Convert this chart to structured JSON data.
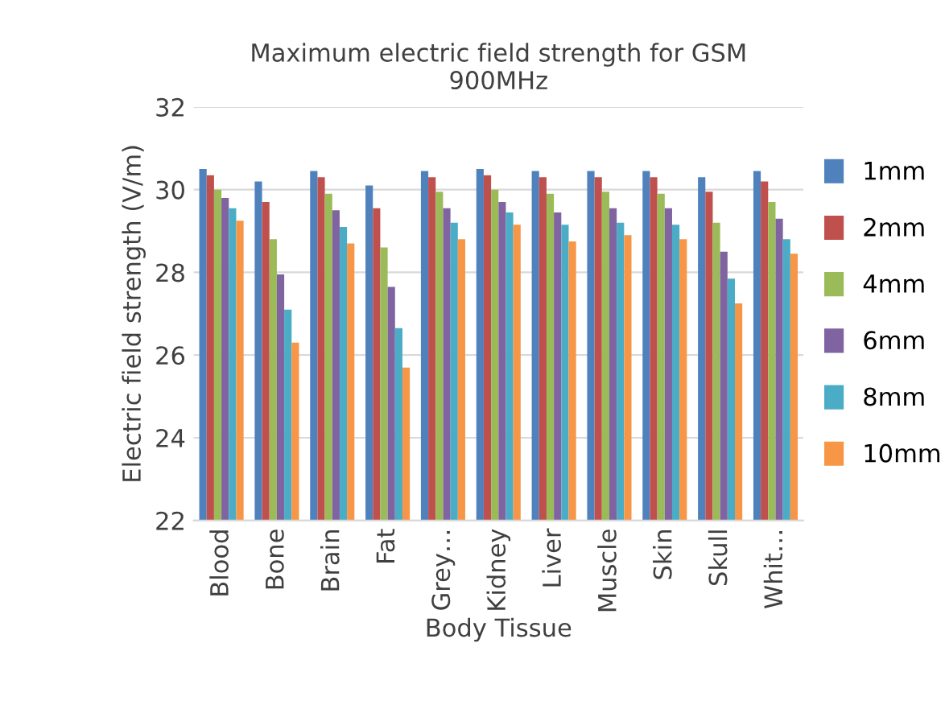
{
  "chart_data": {
    "type": "bar",
    "title": "Maximum electric field strength for GSM\n900MHz",
    "xlabel": "Body Tissue",
    "ylabel": "Electric field strength (V/m)",
    "categories": [
      "Blood",
      "Bone",
      "Brain",
      "Fat",
      "Grey…",
      "Kidney",
      "Liver",
      "Muscle",
      "Skin",
      "Skull",
      "Whit…"
    ],
    "series": [
      {
        "name": "1mm",
        "color": "#4f81bd",
        "values": [
          30.5,
          30.2,
          30.45,
          30.1,
          30.45,
          30.5,
          30.45,
          30.45,
          30.45,
          30.3,
          30.45
        ]
      },
      {
        "name": "2mm",
        "color": "#c0504d",
        "values": [
          30.35,
          29.7,
          30.3,
          29.55,
          30.3,
          30.35,
          30.3,
          30.3,
          30.3,
          29.95,
          30.2
        ]
      },
      {
        "name": "4mm",
        "color": "#9bbb59",
        "values": [
          30.0,
          28.8,
          29.9,
          28.6,
          29.95,
          30.0,
          29.9,
          29.95,
          29.9,
          29.2,
          29.7
        ]
      },
      {
        "name": "6mm",
        "color": "#8064a2",
        "values": [
          29.8,
          27.95,
          29.5,
          27.65,
          29.55,
          29.7,
          29.45,
          29.55,
          29.55,
          28.5,
          29.3
        ]
      },
      {
        "name": "8mm",
        "color": "#4bacc6",
        "values": [
          29.55,
          27.1,
          29.1,
          26.65,
          29.2,
          29.45,
          29.15,
          29.2,
          29.15,
          27.85,
          28.8
        ]
      },
      {
        "name": "10mm",
        "color": "#f79646",
        "values": [
          29.25,
          26.3,
          28.7,
          25.7,
          28.8,
          29.15,
          28.75,
          28.9,
          28.8,
          27.25,
          28.45
        ]
      }
    ],
    "ylim": [
      22,
      32
    ],
    "yticks": [
      22,
      24,
      26,
      28,
      30,
      32
    ],
    "grid": "y",
    "legend": "right"
  }
}
